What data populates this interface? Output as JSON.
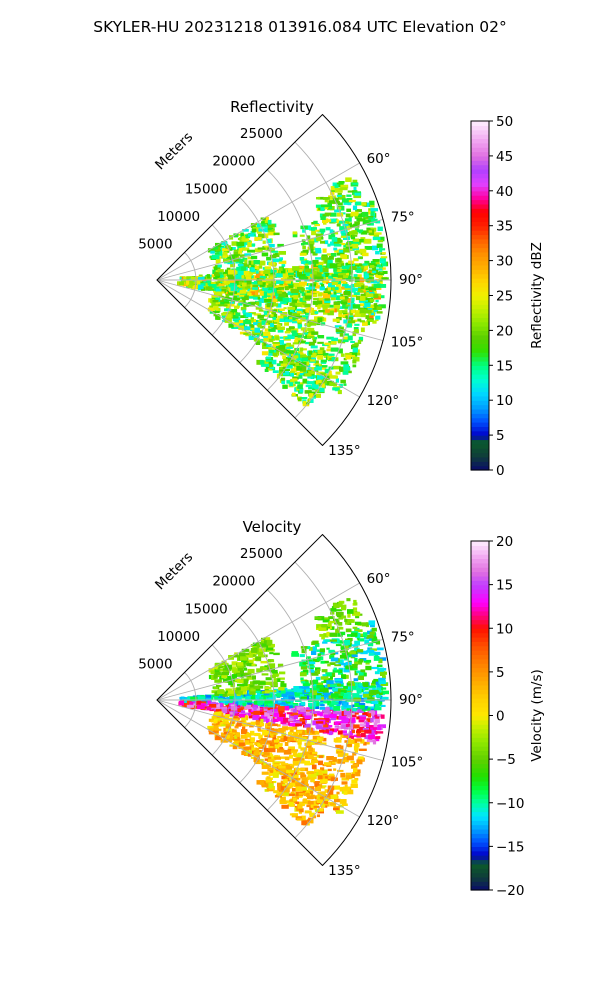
{
  "figure": {
    "suptitle": "SKYLER-HU  20231218  013916.084 UTC Elevation 02°"
  },
  "chart_data": [
    {
      "type": "heatmap",
      "title": "Reflectivity",
      "radial_axis_label": "Meters",
      "range_ticks": [
        5000,
        10000,
        15000,
        20000,
        25000
      ],
      "range_tick_labels": [
        "5000",
        "10000",
        "15000",
        "20000",
        "25000"
      ],
      "range_max": 30000,
      "azimuth_ticks": [
        60,
        75,
        90,
        105,
        120,
        135
      ],
      "azimuth_tick_labels": [
        "60°",
        "75°",
        "90°",
        "105°",
        "120°",
        "135°"
      ],
      "azimuth_range": [
        45,
        135
      ],
      "grid": true,
      "colorbar": {
        "label": "Reflectivity dBZ",
        "min": 0,
        "max": 50,
        "ticks": [
          0,
          5,
          10,
          15,
          20,
          25,
          30,
          35,
          40,
          45,
          50
        ],
        "tick_labels": [
          "0",
          "5",
          "10",
          "15",
          "20",
          "25",
          "30",
          "35",
          "40",
          "45",
          "50"
        ],
        "stops": [
          {
            "v": 0,
            "c": "#0a0a6a"
          },
          {
            "v": 2,
            "c": "#0f3d3a"
          },
          {
            "v": 4,
            "c": "#0b5b2a"
          },
          {
            "v": 5,
            "c": "#0000c8"
          },
          {
            "v": 7,
            "c": "#0050ff"
          },
          {
            "v": 9,
            "c": "#00a0ff"
          },
          {
            "v": 11,
            "c": "#00d8ff"
          },
          {
            "v": 13,
            "c": "#00ffd0"
          },
          {
            "v": 15,
            "c": "#00ff80"
          },
          {
            "v": 17,
            "c": "#30e000"
          },
          {
            "v": 19,
            "c": "#5ad000"
          },
          {
            "v": 21,
            "c": "#8ce800"
          },
          {
            "v": 23,
            "c": "#c0f000"
          },
          {
            "v": 25,
            "c": "#f0f000"
          },
          {
            "v": 27,
            "c": "#ffd700"
          },
          {
            "v": 29,
            "c": "#ffb000"
          },
          {
            "v": 31,
            "c": "#ff9000"
          },
          {
            "v": 33,
            "c": "#ff6000"
          },
          {
            "v": 35,
            "c": "#ff2000"
          },
          {
            "v": 37,
            "c": "#ff0000"
          },
          {
            "v": 39,
            "c": "#ff00a0"
          },
          {
            "v": 41,
            "c": "#e040ff"
          },
          {
            "v": 43,
            "c": "#b040ff"
          },
          {
            "v": 45,
            "c": "#e070e0"
          },
          {
            "v": 47,
            "c": "#f0a0f0"
          },
          {
            "v": 50,
            "c": "#fff0ff"
          }
        ]
      }
    },
    {
      "type": "heatmap",
      "title": "Velocity",
      "radial_axis_label": "Meters",
      "range_ticks": [
        5000,
        10000,
        15000,
        20000,
        25000
      ],
      "range_tick_labels": [
        "5000",
        "10000",
        "15000",
        "20000",
        "25000"
      ],
      "range_max": 30000,
      "azimuth_ticks": [
        60,
        75,
        90,
        105,
        120,
        135
      ],
      "azimuth_tick_labels": [
        "60°",
        "75°",
        "90°",
        "105°",
        "120°",
        "135°"
      ],
      "azimuth_range": [
        45,
        135
      ],
      "grid": true,
      "colorbar": {
        "label": "Velocity (m/s)",
        "min": -20,
        "max": 20,
        "ticks": [
          -20,
          -15,
          -10,
          -5,
          0,
          5,
          10,
          15,
          20
        ],
        "tick_labels": [
          "−20",
          "−15",
          "−10",
          "−5",
          "0",
          "5",
          "10",
          "15",
          "20"
        ],
        "stops": [
          {
            "v": -20,
            "c": "#0a0a6a"
          },
          {
            "v": -18.5,
            "c": "#0f3d3a"
          },
          {
            "v": -17,
            "c": "#0b5b2a"
          },
          {
            "v": -16,
            "c": "#0000c8"
          },
          {
            "v": -14.5,
            "c": "#0050ff"
          },
          {
            "v": -13,
            "c": "#00a0ff"
          },
          {
            "v": -11.5,
            "c": "#00e8ff"
          },
          {
            "v": -10,
            "c": "#00ffa0"
          },
          {
            "v": -8.5,
            "c": "#00ff40"
          },
          {
            "v": -7,
            "c": "#20e000"
          },
          {
            "v": -5,
            "c": "#60d000"
          },
          {
            "v": -3,
            "c": "#90e800"
          },
          {
            "v": -1,
            "c": "#d0f000"
          },
          {
            "v": 0,
            "c": "#ffe800"
          },
          {
            "v": 2,
            "c": "#ffd000"
          },
          {
            "v": 4,
            "c": "#ffa800"
          },
          {
            "v": 6,
            "c": "#ff8000"
          },
          {
            "v": 8,
            "c": "#ff5000"
          },
          {
            "v": 10,
            "c": "#ff1000"
          },
          {
            "v": 11.5,
            "c": "#ff0080"
          },
          {
            "v": 13,
            "c": "#ff00ff"
          },
          {
            "v": 15,
            "c": "#c040ff"
          },
          {
            "v": 16.5,
            "c": "#e070e0"
          },
          {
            "v": 18,
            "c": "#f0a0f0"
          },
          {
            "v": 20,
            "c": "#fff0ff"
          }
        ]
      }
    }
  ]
}
